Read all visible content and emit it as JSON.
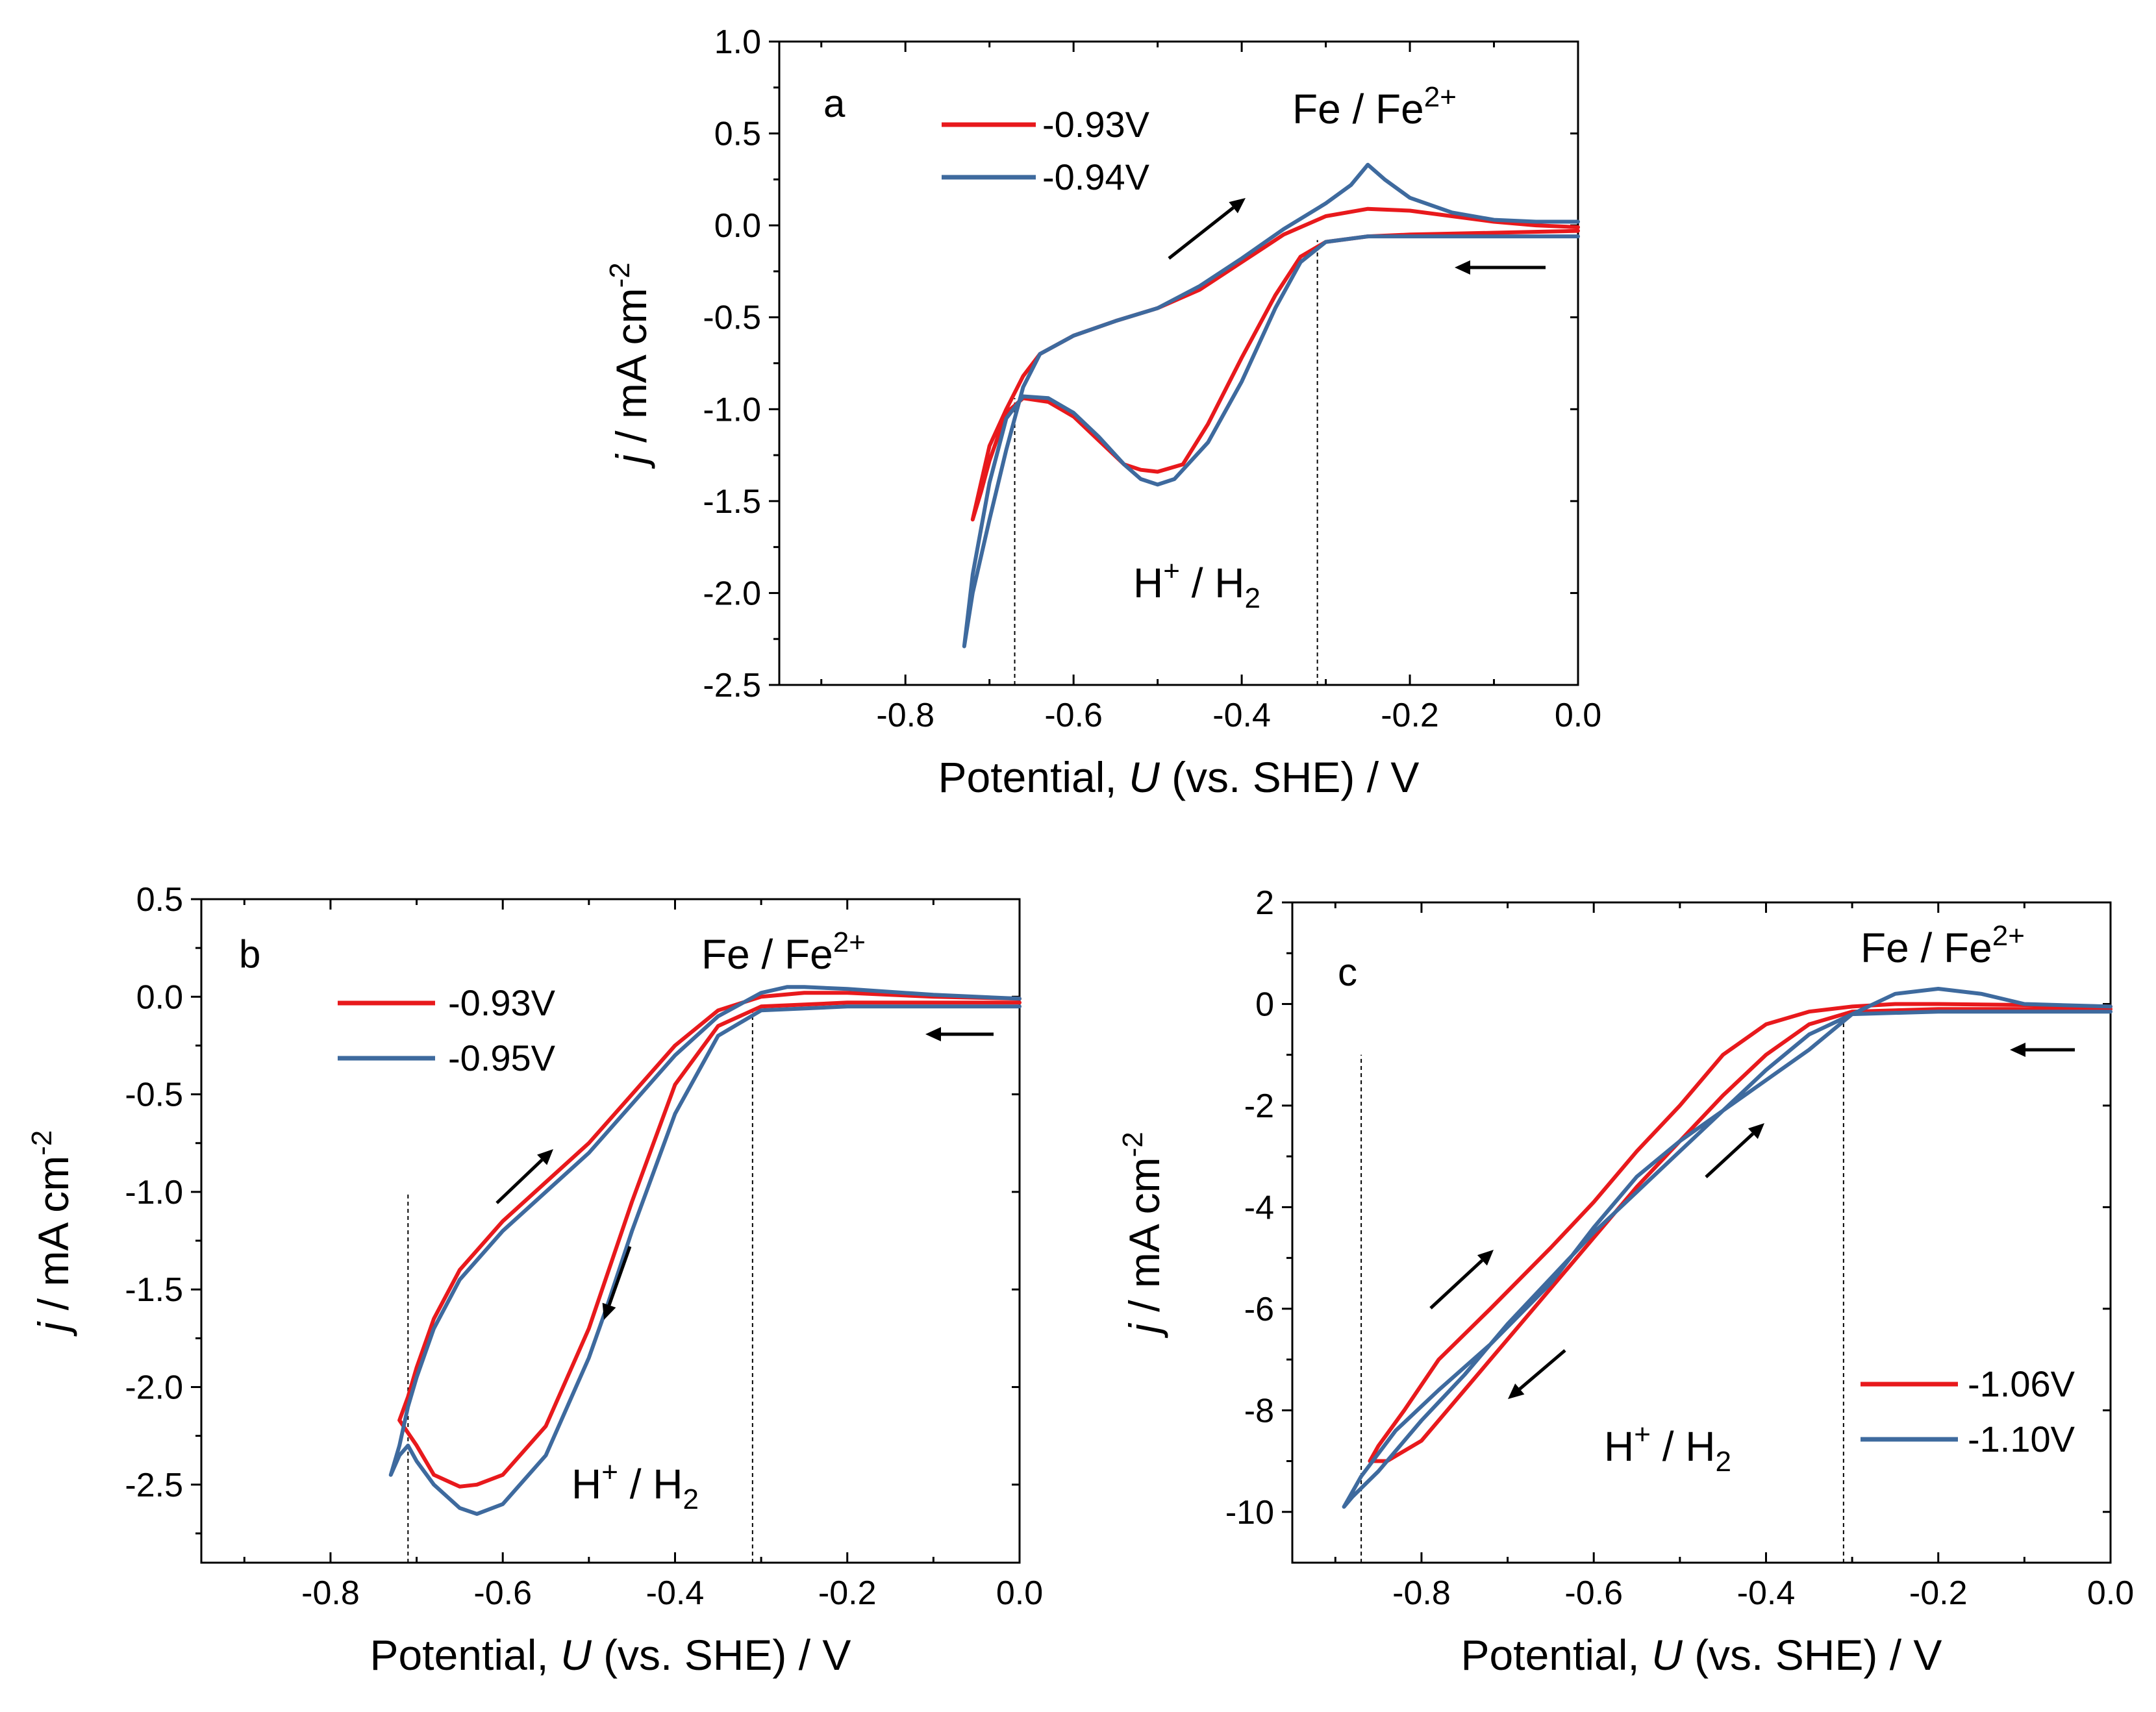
{
  "chart_data": [
    {
      "type": "line",
      "panel_label": "a",
      "xlabel": {
        "pre": "Potential, ",
        "ital": "U",
        "post": " (vs. SHE) / V"
      },
      "ylabel": {
        "ital": "j",
        "post": " / mA cm",
        "sup": "-2"
      },
      "xlim": [
        -0.95,
        0.0
      ],
      "ylim": [
        -2.5,
        1.0
      ],
      "xticks": [
        -0.8,
        -0.6,
        -0.4,
        -0.2,
        0.0
      ],
      "xtick_labels": [
        "-0.8",
        "-0.6",
        "-0.4",
        "-0.2",
        "0.0"
      ],
      "yticks": [
        1.0,
        0.5,
        0.0,
        -0.5,
        -1.0,
        -1.5,
        -2.0,
        -2.5
      ],
      "ytick_labels": [
        "1.0",
        "0.5",
        "0.0",
        "-0.5",
        "-1.0",
        "-1.5",
        "-2.0",
        "-2.5"
      ],
      "legend_position": "top-left",
      "annotations": {
        "fe_text": "Fe / Fe",
        "fe_sup": "2+",
        "h_pre": "H",
        "h_sup": "+",
        "h_mid": " / H",
        "h_sub": "2"
      },
      "vlines": [
        -0.67,
        -0.31
      ],
      "series": [
        {
          "name": "-0.93V",
          "color": "#e8191c",
          "x": [
            0.0,
            -0.1,
            -0.2,
            -0.25,
            -0.3,
            -0.33,
            -0.36,
            -0.4,
            -0.44,
            -0.47,
            -0.5,
            -0.52,
            -0.54,
            -0.57,
            -0.6,
            -0.63,
            -0.66,
            -0.68,
            -0.7,
            -0.71,
            -0.72,
            -0.71,
            -0.7,
            -0.68,
            -0.66,
            -0.64,
            -0.6,
            -0.55,
            -0.5,
            -0.45,
            -0.4,
            -0.35,
            -0.3,
            -0.25,
            -0.2,
            -0.15,
            -0.1,
            -0.05,
            0.0
          ],
          "y": [
            -0.03,
            -0.04,
            -0.05,
            -0.06,
            -0.09,
            -0.17,
            -0.38,
            -0.72,
            -1.08,
            -1.3,
            -1.34,
            -1.33,
            -1.3,
            -1.17,
            -1.04,
            -0.96,
            -0.94,
            -1.02,
            -1.28,
            -1.45,
            -1.6,
            -1.4,
            -1.2,
            -1.0,
            -0.82,
            -0.7,
            -0.6,
            -0.52,
            -0.45,
            -0.35,
            -0.2,
            -0.05,
            0.05,
            0.09,
            0.08,
            0.05,
            0.02,
            0.0,
            -0.01
          ]
        },
        {
          "name": "-0.94V",
          "color": "#3e6a9e",
          "x": [
            0.0,
            -0.1,
            -0.2,
            -0.25,
            -0.3,
            -0.33,
            -0.36,
            -0.4,
            -0.44,
            -0.48,
            -0.5,
            -0.52,
            -0.54,
            -0.57,
            -0.6,
            -0.63,
            -0.66,
            -0.68,
            -0.7,
            -0.72,
            -0.73,
            -0.72,
            -0.7,
            -0.68,
            -0.66,
            -0.64,
            -0.6,
            -0.55,
            -0.5,
            -0.45,
            -0.4,
            -0.35,
            -0.3,
            -0.27,
            -0.25,
            -0.23,
            -0.2,
            -0.15,
            -0.1,
            -0.05,
            0.0
          ],
          "y": [
            -0.06,
            -0.06,
            -0.06,
            -0.06,
            -0.09,
            -0.2,
            -0.45,
            -0.85,
            -1.18,
            -1.38,
            -1.41,
            -1.38,
            -1.3,
            -1.15,
            -1.02,
            -0.94,
            -0.93,
            -1.05,
            -1.4,
            -1.9,
            -2.29,
            -2.0,
            -1.6,
            -1.22,
            -0.88,
            -0.7,
            -0.6,
            -0.52,
            -0.45,
            -0.33,
            -0.18,
            -0.02,
            0.12,
            0.22,
            0.33,
            0.25,
            0.15,
            0.07,
            0.03,
            0.02,
            0.02
          ]
        }
      ]
    },
    {
      "type": "line",
      "panel_label": "b",
      "xlabel": {
        "pre": "Potential, ",
        "ital": "U",
        "post": " (vs. SHE) / V"
      },
      "ylabel": {
        "ital": "j",
        "post": " / mA cm",
        "sup": "-2"
      },
      "xlim": [
        -0.95,
        0.0
      ],
      "ylim": [
        -2.9,
        0.5
      ],
      "xticks": [
        -0.8,
        -0.6,
        -0.4,
        -0.2,
        0.0
      ],
      "xtick_labels": [
        "-0.8",
        "-0.6",
        "-0.4",
        "-0.2",
        "0.0"
      ],
      "yticks": [
        0.5,
        0.0,
        -0.5,
        -1.0,
        -1.5,
        -2.0,
        -2.5
      ],
      "ytick_labels": [
        "0.5",
        "0.0",
        "-0.5",
        "-1.0",
        "-1.5",
        "-2.0",
        "-2.5"
      ],
      "legend_position": "top-left",
      "annotations": {
        "fe_text": "Fe / Fe",
        "fe_sup": "2+",
        "h_pre": "H",
        "h_sup": "+",
        "h_mid": " / H",
        "h_sub": "2"
      },
      "vlines": [
        -0.71,
        -0.31
      ],
      "series": [
        {
          "name": "-0.93V",
          "color": "#e8191c",
          "x": [
            0.0,
            -0.1,
            -0.2,
            -0.3,
            -0.35,
            -0.4,
            -0.45,
            -0.5,
            -0.55,
            -0.6,
            -0.63,
            -0.65,
            -0.68,
            -0.7,
            -0.72,
            -0.71,
            -0.7,
            -0.68,
            -0.65,
            -0.6,
            -0.55,
            -0.5,
            -0.45,
            -0.4,
            -0.35,
            -0.3,
            -0.25,
            -0.2,
            -0.1,
            0.0
          ],
          "y": [
            -0.03,
            -0.03,
            -0.03,
            -0.05,
            -0.15,
            -0.45,
            -1.05,
            -1.7,
            -2.2,
            -2.45,
            -2.5,
            -2.51,
            -2.45,
            -2.3,
            -2.17,
            -2.05,
            -1.9,
            -1.65,
            -1.4,
            -1.15,
            -0.95,
            -0.75,
            -0.5,
            -0.25,
            -0.07,
            0.0,
            0.02,
            0.02,
            0.0,
            -0.01
          ]
        },
        {
          "name": "-0.95V",
          "color": "#3e6a9e",
          "x": [
            0.0,
            -0.1,
            -0.2,
            -0.3,
            -0.35,
            -0.4,
            -0.45,
            -0.48,
            -0.5,
            -0.55,
            -0.6,
            -0.63,
            -0.65,
            -0.68,
            -0.7,
            -0.71,
            -0.72,
            -0.73,
            -0.72,
            -0.71,
            -0.7,
            -0.68,
            -0.65,
            -0.6,
            -0.55,
            -0.5,
            -0.45,
            -0.4,
            -0.35,
            -0.3,
            -0.27,
            -0.25,
            -0.2,
            -0.1,
            0.0
          ],
          "y": [
            -0.05,
            -0.05,
            -0.05,
            -0.07,
            -0.2,
            -0.6,
            -1.2,
            -1.6,
            -1.85,
            -2.35,
            -2.6,
            -2.65,
            -2.62,
            -2.5,
            -2.38,
            -2.3,
            -2.35,
            -2.45,
            -2.3,
            -2.1,
            -1.95,
            -1.7,
            -1.45,
            -1.2,
            -1.0,
            -0.8,
            -0.55,
            -0.3,
            -0.1,
            0.02,
            0.05,
            0.05,
            0.04,
            0.01,
            -0.01
          ]
        }
      ]
    },
    {
      "type": "line",
      "panel_label": "c",
      "xlabel": {
        "pre": "Potential, ",
        "ital": "U",
        "post": " (vs. SHE) / V"
      },
      "ylabel": {
        "ital": "j",
        "post": " / mA cm",
        "sup": "-2"
      },
      "xlim": [
        -0.95,
        0.0
      ],
      "ylim": [
        -11,
        2
      ],
      "xticks": [
        -0.8,
        -0.6,
        -0.4,
        -0.2,
        0.0
      ],
      "xtick_labels": [
        "-0.8",
        "-0.6",
        "-0.4",
        "-0.2",
        "0.0"
      ],
      "yticks": [
        2,
        0,
        -2,
        -4,
        -6,
        -8,
        -10
      ],
      "ytick_labels": [
        "2",
        "0",
        "-2",
        "-4",
        "-6",
        "-8",
        "-10"
      ],
      "legend_position": "bottom-right",
      "annotations": {
        "fe_text": "Fe / Fe",
        "fe_sup": "2+",
        "h_pre": "H",
        "h_sup": "+",
        "h_mid": " / H",
        "h_sub": "2"
      },
      "vlines": [
        -0.87,
        -0.31
      ],
      "series": [
        {
          "name": "-1.06V",
          "color": "#e8191c",
          "x": [
            0.0,
            -0.1,
            -0.2,
            -0.3,
            -0.35,
            -0.4,
            -0.45,
            -0.5,
            -0.55,
            -0.6,
            -0.65,
            -0.7,
            -0.75,
            -0.8,
            -0.84,
            -0.86,
            -0.85,
            -0.82,
            -0.78,
            -0.72,
            -0.65,
            -0.6,
            -0.55,
            -0.5,
            -0.45,
            -0.4,
            -0.35,
            -0.3,
            -0.25,
            -0.2,
            -0.1,
            0.0
          ],
          "y": [
            -0.1,
            -0.1,
            -0.1,
            -0.15,
            -0.4,
            -1.0,
            -1.8,
            -2.7,
            -3.6,
            -4.6,
            -5.6,
            -6.6,
            -7.6,
            -8.6,
            -9.0,
            -9.0,
            -8.7,
            -8.0,
            -7.0,
            -6.0,
            -4.8,
            -3.9,
            -2.9,
            -2.0,
            -1.0,
            -0.4,
            -0.15,
            -0.05,
            0.0,
            0.0,
            -0.02,
            -0.05
          ]
        },
        {
          "name": "-1.10V",
          "color": "#3e6a9e",
          "x": [
            0.0,
            -0.1,
            -0.2,
            -0.3,
            -0.35,
            -0.4,
            -0.45,
            -0.5,
            -0.55,
            -0.6,
            -0.65,
            -0.7,
            -0.75,
            -0.8,
            -0.85,
            -0.88,
            -0.89,
            -0.87,
            -0.83,
            -0.78,
            -0.72,
            -0.65,
            -0.6,
            -0.55,
            -0.5,
            -0.45,
            -0.4,
            -0.35,
            -0.3,
            -0.25,
            -0.2,
            -0.15,
            -0.1,
            0.0
          ],
          "y": [
            -0.15,
            -0.15,
            -0.15,
            -0.2,
            -0.6,
            -1.3,
            -2.1,
            -2.9,
            -3.7,
            -4.5,
            -5.4,
            -6.3,
            -7.3,
            -8.2,
            -9.2,
            -9.7,
            -9.9,
            -9.3,
            -8.4,
            -7.6,
            -6.7,
            -5.5,
            -4.4,
            -3.4,
            -2.7,
            -2.1,
            -1.5,
            -0.9,
            -0.2,
            0.2,
            0.3,
            0.2,
            0.0,
            -0.05
          ]
        }
      ]
    }
  ]
}
